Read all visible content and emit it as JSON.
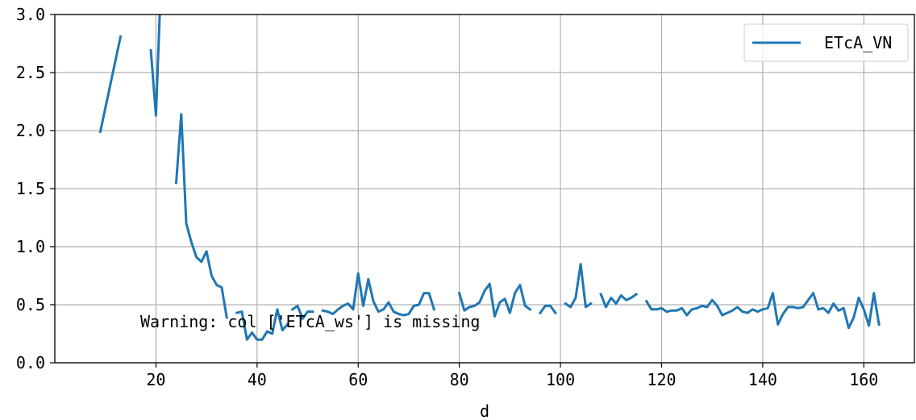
{
  "chart_data": {
    "type": "line",
    "title": "",
    "xlabel": "d",
    "ylabel": "",
    "xlim": [
      0,
      170
    ],
    "ylim": [
      0,
      3.0
    ],
    "x_ticks": [
      20,
      40,
      60,
      80,
      100,
      120,
      140,
      160
    ],
    "y_ticks": [
      "0.0",
      "0.5",
      "1.0",
      "1.5",
      "2.0",
      "2.5",
      "3.0"
    ],
    "grid": true,
    "legend_position": "top-right",
    "annotation": "Warning: col ['ETcA_ws'] is missing",
    "colors": {
      "series": "#1f77b4",
      "grid": "#b0b0b0",
      "axis": "#000000"
    },
    "series": [
      {
        "name": "ETcA_VN",
        "segments": [
          [
            [
              9,
              1.99
            ],
            [
              13,
              2.81
            ]
          ],
          [
            [
              19,
              2.69
            ],
            [
              20,
              2.13
            ],
            [
              21,
              3.3
            ]
          ],
          [
            [
              24,
              1.55
            ],
            [
              25,
              2.14
            ],
            [
              26,
              1.2
            ],
            [
              27,
              1.04
            ],
            [
              28,
              0.91
            ],
            [
              29,
              0.87
            ],
            [
              30,
              0.96
            ],
            [
              31,
              0.75
            ],
            [
              32,
              0.67
            ],
            [
              33,
              0.65
            ],
            [
              34,
              0.39
            ]
          ],
          [
            [
              36,
              0.43
            ],
            [
              37,
              0.44
            ],
            [
              38,
              0.2
            ],
            [
              39,
              0.26
            ],
            [
              40,
              0.2
            ],
            [
              41,
              0.2
            ],
            [
              42,
              0.27
            ],
            [
              43,
              0.25
            ],
            [
              44,
              0.46
            ],
            [
              45,
              0.28
            ],
            [
              46,
              0.33
            ]
          ],
          [
            [
              47,
              0.46
            ],
            [
              48,
              0.49
            ],
            [
              49,
              0.38
            ],
            [
              50,
              0.44
            ],
            [
              51,
              0.44
            ]
          ],
          [
            [
              53,
              0.45
            ],
            [
              54,
              0.44
            ],
            [
              55,
              0.42
            ],
            [
              56,
              0.46
            ],
            [
              57,
              0.49
            ],
            [
              58,
              0.51
            ],
            [
              59,
              0.46
            ],
            [
              60,
              0.77
            ],
            [
              61,
              0.49
            ],
            [
              62,
              0.72
            ],
            [
              63,
              0.53
            ],
            [
              64,
              0.44
            ],
            [
              65,
              0.46
            ],
            [
              66,
              0.52
            ],
            [
              67,
              0.44
            ],
            [
              68,
              0.42
            ],
            [
              69,
              0.41
            ],
            [
              70,
              0.42
            ],
            [
              71,
              0.49
            ],
            [
              72,
              0.5
            ],
            [
              73,
              0.6
            ],
            [
              74,
              0.6
            ],
            [
              75,
              0.46
            ]
          ],
          [
            [
              80,
              0.6
            ],
            [
              81,
              0.45
            ],
            [
              82,
              0.48
            ],
            [
              83,
              0.49
            ],
            [
              84,
              0.52
            ],
            [
              85,
              0.62
            ],
            [
              86,
              0.68
            ],
            [
              87,
              0.4
            ],
            [
              88,
              0.52
            ],
            [
              89,
              0.55
            ],
            [
              90,
              0.43
            ],
            [
              91,
              0.6
            ],
            [
              92,
              0.67
            ],
            [
              93,
              0.49
            ],
            [
              94,
              0.46
            ]
          ],
          [
            [
              96,
              0.43
            ],
            [
              97,
              0.49
            ],
            [
              98,
              0.49
            ],
            [
              99,
              0.43
            ]
          ],
          [
            [
              101,
              0.51
            ],
            [
              102,
              0.48
            ],
            [
              103,
              0.56
            ],
            [
              104,
              0.85
            ],
            [
              105,
              0.48
            ],
            [
              106,
              0.51
            ]
          ],
          [
            [
              108,
              0.59
            ],
            [
              109,
              0.48
            ],
            [
              110,
              0.56
            ],
            [
              111,
              0.51
            ],
            [
              112,
              0.58
            ],
            [
              113,
              0.54
            ],
            [
              114,
              0.56
            ],
            [
              115,
              0.59
            ]
          ],
          [
            [
              117,
              0.53
            ],
            [
              118,
              0.46
            ],
            [
              119,
              0.46
            ],
            [
              120,
              0.47
            ],
            [
              121,
              0.44
            ],
            [
              122,
              0.45
            ],
            [
              123,
              0.45
            ],
            [
              124,
              0.47
            ],
            [
              125,
              0.41
            ],
            [
              126,
              0.46
            ],
            [
              127,
              0.47
            ],
            [
              128,
              0.49
            ],
            [
              129,
              0.48
            ],
            [
              130,
              0.54
            ],
            [
              131,
              0.49
            ],
            [
              132,
              0.41
            ],
            [
              133,
              0.43
            ],
            [
              134,
              0.45
            ],
            [
              135,
              0.48
            ],
            [
              136,
              0.44
            ],
            [
              137,
              0.43
            ],
            [
              138,
              0.46
            ],
            [
              139,
              0.44
            ],
            [
              140,
              0.46
            ],
            [
              141,
              0.47
            ],
            [
              142,
              0.6
            ],
            [
              143,
              0.33
            ],
            [
              144,
              0.42
            ],
            [
              145,
              0.48
            ],
            [
              146,
              0.48
            ],
            [
              147,
              0.47
            ],
            [
              148,
              0.48
            ],
            [
              149,
              0.54
            ],
            [
              150,
              0.6
            ],
            [
              151,
              0.46
            ],
            [
              152,
              0.47
            ],
            [
              153,
              0.43
            ],
            [
              154,
              0.51
            ],
            [
              155,
              0.45
            ],
            [
              156,
              0.47
            ],
            [
              157,
              0.3
            ],
            [
              158,
              0.39
            ],
            [
              159,
              0.56
            ],
            [
              160,
              0.46
            ],
            [
              161,
              0.32
            ],
            [
              162,
              0.6
            ],
            [
              163,
              0.33
            ]
          ]
        ]
      }
    ]
  }
}
